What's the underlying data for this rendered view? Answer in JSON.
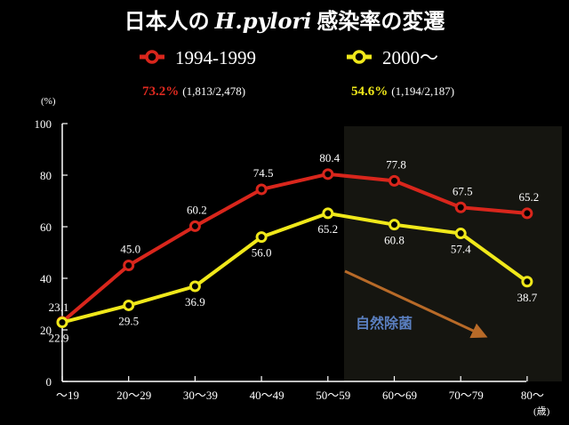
{
  "title": {
    "prefix": "日本人の",
    "italic": "H.pylori",
    "suffix": "感染率の変遷"
  },
  "legend": [
    {
      "label": "1994-1999",
      "color": "#d9261c"
    },
    {
      "label": "2000～",
      "color": "#f0e81a"
    }
  ],
  "summary": [
    {
      "pct": "73.2%",
      "detail": "(1,813/2,478)",
      "color": "#e02a20"
    },
    {
      "pct": "54.6%",
      "detail": "(1,194/2,187)",
      "color": "#f0e81a"
    }
  ],
  "annotation": {
    "text": "自然除菌",
    "color": "#5a7fc0",
    "arrow_color": "#b86a28"
  },
  "shaded_region_color": "#151510",
  "chart_data": {
    "type": "line",
    "title": "日本人の H.pylori 感染率の変遷",
    "categories": [
      "～19",
      "20～29",
      "30～39",
      "40～49",
      "50～59",
      "60～69",
      "70～79",
      "80～"
    ],
    "series": [
      {
        "name": "1994-1999",
        "color": "#d9261c",
        "values": [
          23.1,
          45.0,
          60.2,
          74.5,
          80.4,
          77.8,
          67.5,
          65.2
        ]
      },
      {
        "name": "2000～",
        "color": "#f0e81a",
        "values": [
          22.9,
          29.5,
          36.9,
          56.0,
          65.2,
          60.8,
          57.4,
          38.7
        ]
      }
    ],
    "ylim": [
      0,
      100
    ],
    "yticks": [
      0,
      20,
      40,
      60,
      80,
      100
    ],
    "ylabel": "(%)",
    "xlabel": "(歳)",
    "grid": false,
    "legend_position": "top"
  }
}
